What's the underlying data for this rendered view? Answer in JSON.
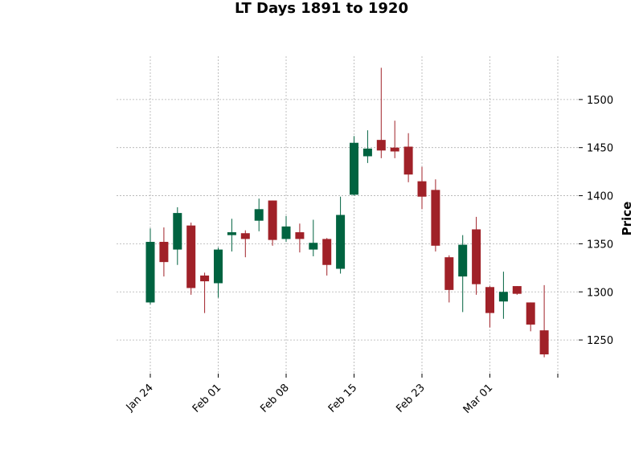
{
  "chart_data": {
    "type": "candlestick",
    "title": "LT Days 1891 to 1920",
    "xlabel": "",
    "ylabel": "Price",
    "ylim": [
      1215,
      1545
    ],
    "grid": true,
    "yticks": [
      1250,
      1300,
      1350,
      1400,
      1450,
      1500
    ],
    "xticks": [
      {
        "label": "Jan 24",
        "index": 0
      },
      {
        "label": "Feb 01",
        "index": 5
      },
      {
        "label": "Feb 08",
        "index": 10
      },
      {
        "label": "Feb 15",
        "index": 15
      },
      {
        "label": "Feb 23",
        "index": 20
      },
      {
        "label": "Mar 01",
        "index": 25
      },
      {
        "label": "",
        "index": 30
      }
    ],
    "colors": {
      "up": "#006340",
      "down": "#a02128",
      "grid": "#b0b0b0"
    },
    "candles": [
      {
        "open": 1289,
        "high": 1366,
        "low": 1287,
        "close": 1352
      },
      {
        "open": 1352,
        "high": 1367,
        "low": 1316,
        "close": 1331
      },
      {
        "open": 1344,
        "high": 1388,
        "low": 1328,
        "close": 1382
      },
      {
        "open": 1369,
        "high": 1372,
        "low": 1297,
        "close": 1304
      },
      {
        "open": 1317,
        "high": 1320,
        "low": 1278,
        "close": 1311
      },
      {
        "open": 1309,
        "high": 1346,
        "low": 1294,
        "close": 1344
      },
      {
        "open": 1359,
        "high": 1376,
        "low": 1342,
        "close": 1362
      },
      {
        "open": 1361,
        "high": 1364,
        "low": 1336,
        "close": 1355
      },
      {
        "open": 1374,
        "high": 1397,
        "low": 1363,
        "close": 1386
      },
      {
        "open": 1395,
        "high": 1395,
        "low": 1348,
        "close": 1354
      },
      {
        "open": 1355,
        "high": 1379,
        "low": 1352,
        "close": 1368
      },
      {
        "open": 1362,
        "high": 1371,
        "low": 1341,
        "close": 1355
      },
      {
        "open": 1344,
        "high": 1375,
        "low": 1337,
        "close": 1351
      },
      {
        "open": 1355,
        "high": 1356,
        "low": 1317,
        "close": 1328
      },
      {
        "open": 1324,
        "high": 1399,
        "low": 1319,
        "close": 1380
      },
      {
        "open": 1401,
        "high": 1462,
        "low": 1400,
        "close": 1455
      },
      {
        "open": 1441,
        "high": 1468,
        "low": 1434,
        "close": 1449
      },
      {
        "open": 1458,
        "high": 1533,
        "low": 1439,
        "close": 1447
      },
      {
        "open": 1450,
        "high": 1478,
        "low": 1439,
        "close": 1446
      },
      {
        "open": 1451,
        "high": 1465,
        "low": 1414,
        "close": 1422
      },
      {
        "open": 1415,
        "high": 1430,
        "low": 1386,
        "close": 1399
      },
      {
        "open": 1406,
        "high": 1417,
        "low": 1342,
        "close": 1348
      },
      {
        "open": 1336,
        "high": 1338,
        "low": 1289,
        "close": 1302
      },
      {
        "open": 1316,
        "high": 1359,
        "low": 1279,
        "close": 1349
      },
      {
        "open": 1365,
        "high": 1378,
        "low": 1297,
        "close": 1308
      },
      {
        "open": 1305,
        "high": 1306,
        "low": 1263,
        "close": 1278
      },
      {
        "open": 1290,
        "high": 1321,
        "low": 1272,
        "close": 1300
      },
      {
        "open": 1306,
        "high": 1306,
        "low": 1297,
        "close": 1298
      },
      {
        "open": 1289,
        "high": 1289,
        "low": 1259,
        "close": 1266
      },
      {
        "open": 1260,
        "high": 1307,
        "low": 1232,
        "close": 1235
      }
    ]
  }
}
